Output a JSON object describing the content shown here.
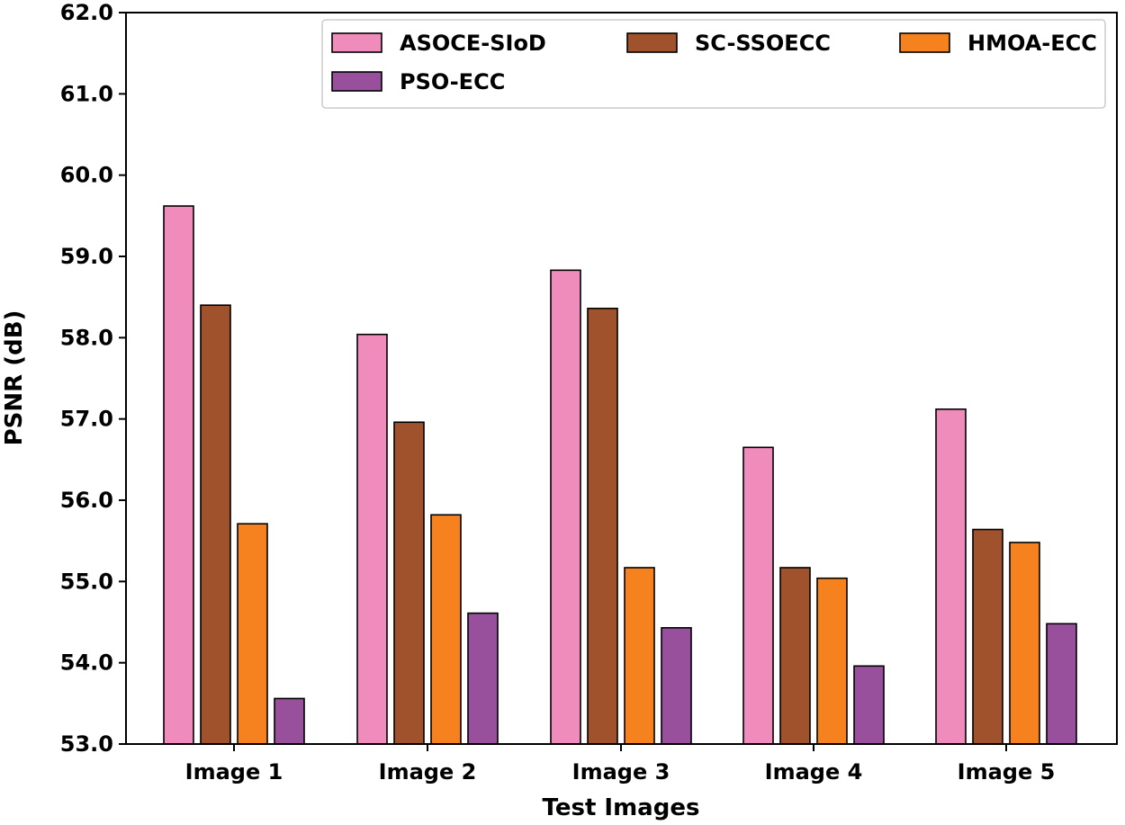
{
  "chart_data": {
    "type": "bar",
    "title": "",
    "xlabel": "Test Images",
    "ylabel": "PSNR (dB)",
    "ylim": [
      53.0,
      62.0
    ],
    "yticks": [
      "53.0",
      "54.0",
      "55.0",
      "56.0",
      "57.0",
      "58.0",
      "59.0",
      "60.0",
      "61.0",
      "62.0"
    ],
    "categories": [
      "Image 1",
      "Image 2",
      "Image 3",
      "Image 4",
      "Image 5"
    ],
    "grid": false,
    "legend_position": "top-right",
    "series": [
      {
        "name": "ASOCE-SIoD",
        "color": "#f08cbc",
        "values": [
          59.62,
          58.04,
          58.83,
          56.65,
          57.12
        ]
      },
      {
        "name": "SC-SSOECC",
        "color": "#a0522d",
        "values": [
          58.4,
          56.96,
          58.36,
          55.17,
          55.64
        ]
      },
      {
        "name": "HMOA-ECC",
        "color": "#f5821f",
        "values": [
          55.71,
          55.82,
          55.17,
          55.04,
          55.48
        ]
      },
      {
        "name": "PSO-ECC",
        "color": "#98509c",
        "values": [
          53.56,
          54.61,
          54.43,
          53.96,
          54.48
        ]
      }
    ]
  }
}
